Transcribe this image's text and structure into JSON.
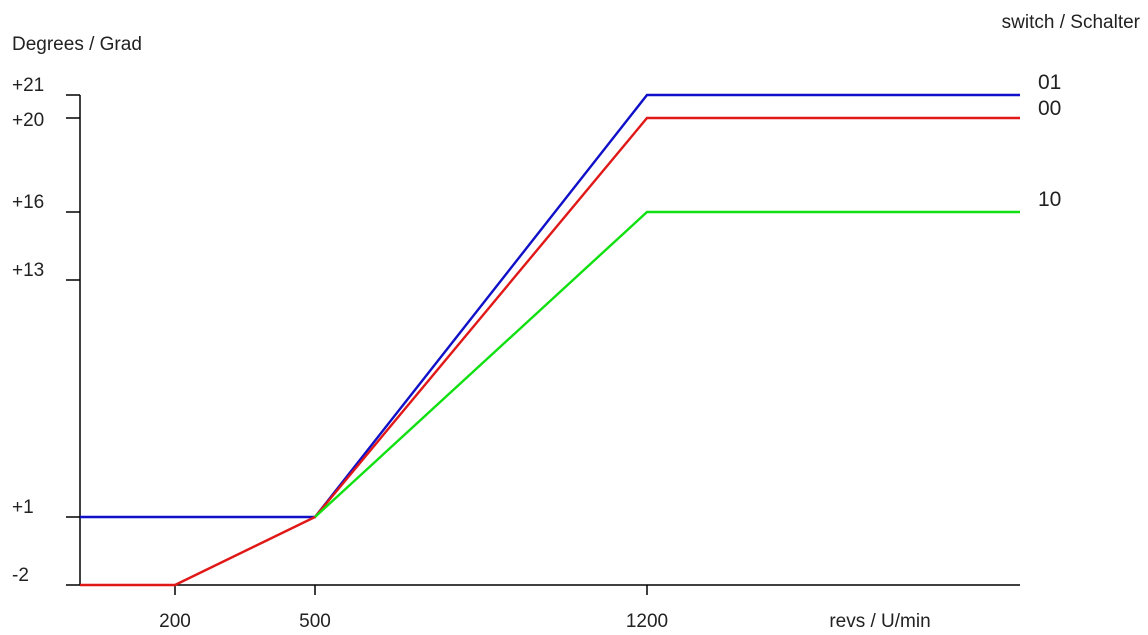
{
  "chart_data": {
    "type": "line",
    "title": "",
    "ylabel": "Degrees / Grad",
    "xlabel": "revs / U/min",
    "legend_title": "switch / Schalter",
    "x_ticks": [
      200,
      500,
      1200
    ],
    "x_tick_labels": [
      "200",
      "500",
      "1200"
    ],
    "y_ticks": [
      -2,
      1,
      13,
      16,
      20,
      21
    ],
    "y_tick_labels": [
      "-2",
      "+1",
      "+13",
      "+16",
      "+20",
      "+21"
    ],
    "xlim": [
      0,
      2000
    ],
    "ylim": [
      -2,
      21
    ],
    "grid": false,
    "series": [
      {
        "name": "01",
        "color": "#1010c8",
        "points": [
          [
            0,
            1
          ],
          [
            500,
            1
          ],
          [
            1200,
            21
          ],
          [
            2000,
            21
          ]
        ]
      },
      {
        "name": "00",
        "color": "#e01818",
        "points": [
          [
            0,
            -2
          ],
          [
            200,
            -2
          ],
          [
            500,
            1
          ],
          [
            1200,
            20
          ],
          [
            2000,
            20
          ]
        ]
      },
      {
        "name": "10",
        "color": "#10e010",
        "points": [
          [
            500,
            1
          ],
          [
            1200,
            16
          ],
          [
            2000,
            16
          ]
        ]
      }
    ]
  }
}
